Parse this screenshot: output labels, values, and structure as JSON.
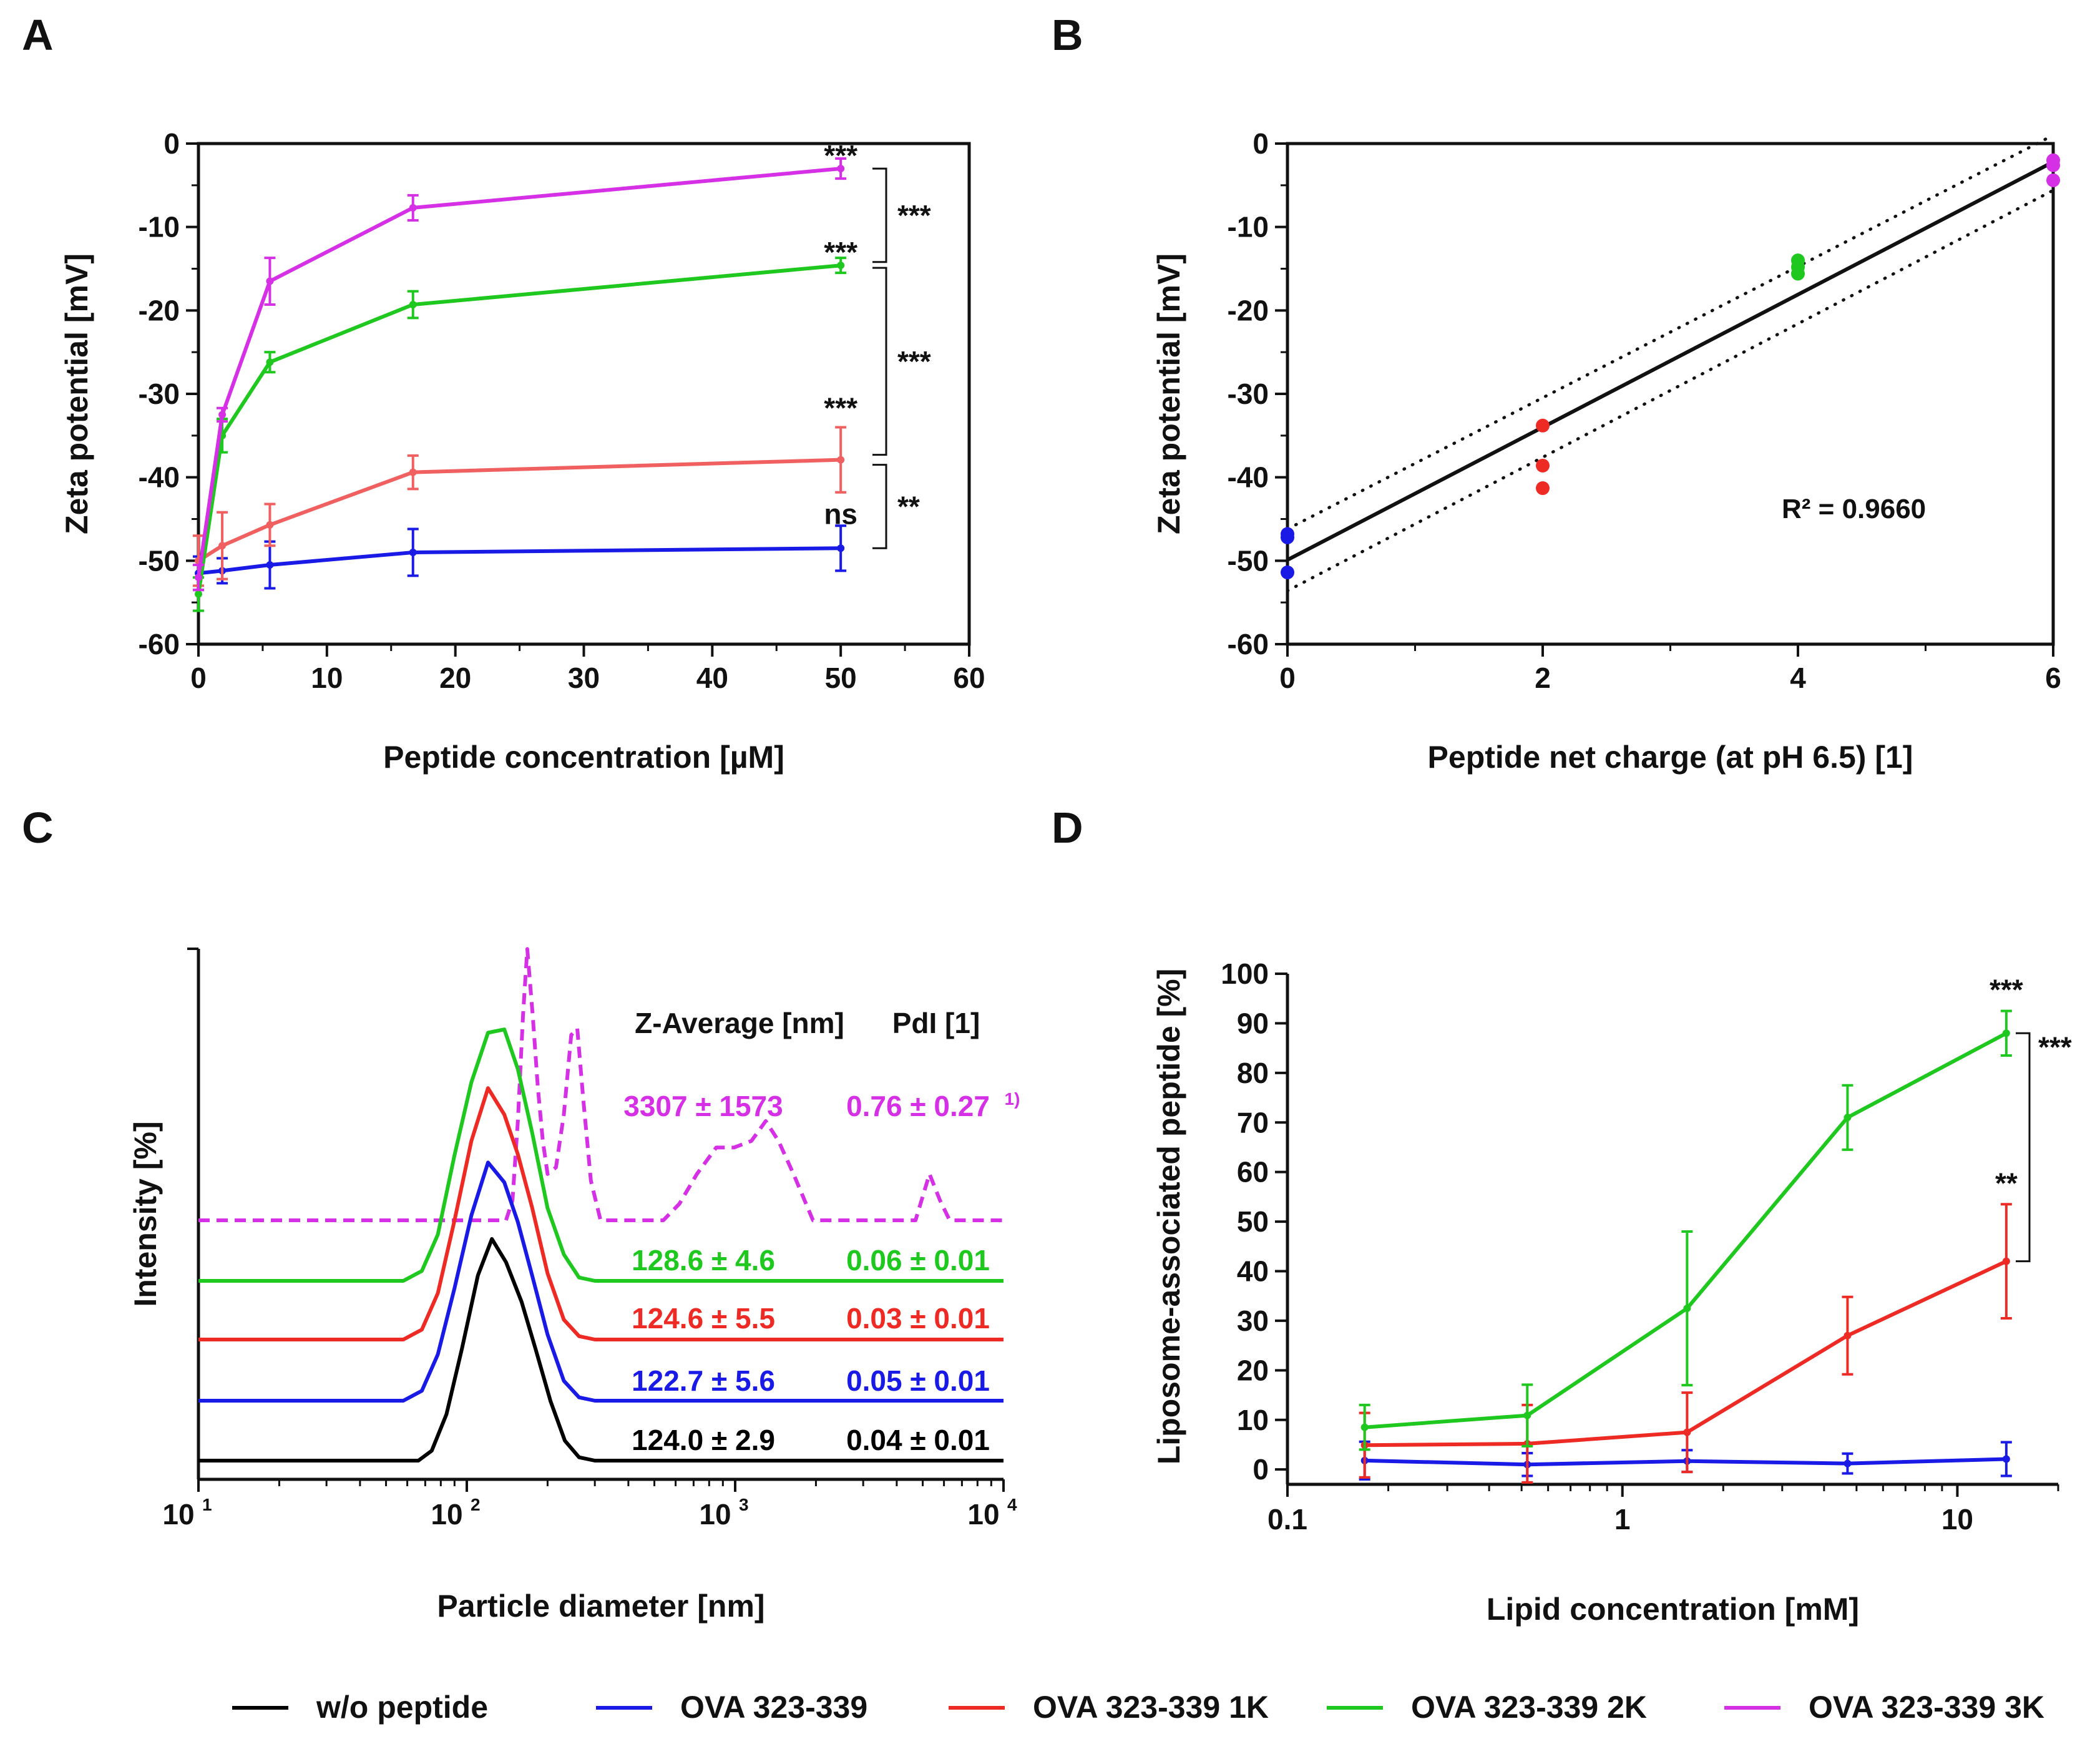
{
  "colors": {
    "wo_peptide": "#000000",
    "ova": "#1a1ae6",
    "ova_1k": "#ee2a24",
    "ova_1k_a": "#f06060",
    "ova_2k": "#1ec81e",
    "ova_3k": "#d630e6"
  },
  "panels": {
    "A": {
      "label": "A"
    },
    "B": {
      "label": "B"
    },
    "C": {
      "label": "C"
    },
    "D": {
      "label": "D"
    }
  },
  "legend": {
    "items": [
      {
        "label": "w/o peptide",
        "color": "#000000"
      },
      {
        "label": "OVA 323-339",
        "color": "#1a1ae6"
      },
      {
        "label": "OVA 323-339 1K",
        "color": "#ee2a24"
      },
      {
        "label": "OVA 323-339 2K",
        "color": "#1ec81e"
      },
      {
        "label": "OVA 323-339 3K",
        "color": "#d630e6"
      }
    ]
  },
  "chart_data": [
    {
      "panel": "A",
      "type": "line",
      "title": "",
      "xlabel": "Peptide concentration [µM]",
      "ylabel": "Zeta potential [mV]",
      "xlim": [
        0,
        60
      ],
      "ylim": [
        -60,
        0
      ],
      "xticks": [
        "0",
        "10",
        "20",
        "30",
        "40",
        "50",
        "60"
      ],
      "yticks": [
        "0",
        "-10",
        "-20",
        "-30",
        "-40",
        "-50",
        "-60"
      ],
      "x": [
        0,
        1.85,
        5.56,
        16.7,
        50
      ],
      "series": [
        {
          "name": "OVA 323-339",
          "color": "#1a1ae6",
          "values": [
            -51.5,
            -51.2,
            -50.5,
            -49.0,
            -48.5
          ],
          "errors": [
            2.0,
            1.5,
            2.8,
            2.8,
            2.7
          ]
        },
        {
          "name": "OVA 323-339 1K",
          "color": "#f06060",
          "values": [
            -50.0,
            -48.2,
            -45.7,
            -39.4,
            -37.9
          ],
          "errors": [
            3.0,
            4.0,
            2.5,
            2.0,
            3.9
          ]
        },
        {
          "name": "OVA 323-339 2K",
          "color": "#1ec81e",
          "values": [
            -54.0,
            -35.0,
            -26.2,
            -19.3,
            -14.6
          ],
          "errors": [
            2.0,
            2.0,
            1.2,
            1.6,
            0.9
          ]
        },
        {
          "name": "OVA 323-339 3K",
          "color": "#d630e6",
          "values": [
            -52.0,
            -32.5,
            -16.5,
            -7.7,
            -3.0
          ],
          "errors": [
            1.5,
            0.8,
            2.8,
            1.5,
            1.2
          ]
        }
      ],
      "annotations": [
        {
          "text": "***",
          "series": "OVA 323-339 3K"
        },
        {
          "text": "***",
          "series": "OVA 323-339 2K"
        },
        {
          "text": "***",
          "series": "OVA 323-339 1K"
        },
        {
          "text": "ns",
          "series": "OVA 323-339"
        }
      ],
      "brackets": [
        {
          "text": "***",
          "from": "OVA 323-339 3K",
          "to": "OVA 323-339 2K"
        },
        {
          "text": "***",
          "from": "OVA 323-339 2K",
          "to": "OVA 323-339 1K"
        },
        {
          "text": "**",
          "from": "OVA 323-339 1K",
          "to": "OVA 323-339"
        }
      ]
    },
    {
      "panel": "B",
      "type": "scatter",
      "title": "",
      "xlabel": "Peptide net charge (at pH 6.5) [1]",
      "ylabel": "Zeta potential [mV]",
      "xlim": [
        0,
        6
      ],
      "ylim": [
        -60,
        0
      ],
      "xticks": [
        "0",
        "2",
        "4",
        "6"
      ],
      "yticks": [
        "0",
        "-10",
        "-20",
        "-30",
        "-40",
        "-50",
        "-60"
      ],
      "points": [
        {
          "x": 0,
          "y": -47.2,
          "color": "#1a1ae6"
        },
        {
          "x": 0,
          "y": -46.8,
          "color": "#1a1ae6"
        },
        {
          "x": 0,
          "y": -51.4,
          "color": "#1a1ae6"
        },
        {
          "x": 2,
          "y": -33.8,
          "color": "#ee2a24"
        },
        {
          "x": 2,
          "y": -38.6,
          "color": "#ee2a24"
        },
        {
          "x": 2,
          "y": -41.3,
          "color": "#ee2a24"
        },
        {
          "x": 4,
          "y": -14.0,
          "color": "#1ec81e"
        },
        {
          "x": 4,
          "y": -14.8,
          "color": "#1ec81e"
        },
        {
          "x": 4,
          "y": -15.6,
          "color": "#1ec81e"
        },
        {
          "x": 6,
          "y": -2.0,
          "color": "#d630e6"
        },
        {
          "x": 6,
          "y": -2.6,
          "color": "#d630e6"
        },
        {
          "x": 6,
          "y": -4.4,
          "color": "#d630e6"
        }
      ],
      "fit": {
        "x": [
          0,
          6
        ],
        "y": [
          -49.9,
          -2.2
        ]
      },
      "ci_upper": {
        "x": [
          0,
          6
        ],
        "y": [
          -46.2,
          1.0
        ]
      },
      "ci_lower": {
        "x": [
          0,
          6
        ],
        "y": [
          -53.6,
          -5.6
        ]
      },
      "r2_label": "R² = 0.9660"
    },
    {
      "panel": "C",
      "type": "line",
      "title": "",
      "xlabel": "Particle diameter [nm]",
      "ylabel": "Intensity [%]",
      "xscale": "log",
      "xlim": [
        10,
        10000
      ],
      "xticks": [
        {
          "base": "10",
          "exp": "1"
        },
        {
          "base": "10",
          "exp": "2"
        },
        {
          "base": "10",
          "exp": "3"
        },
        {
          "base": "10",
          "exp": "4"
        }
      ],
      "header": {
        "z_average": "Z-Average [nm]",
        "pdi": "PdI [1]"
      },
      "series": [
        {
          "name": "OVA 323-339 3K",
          "color": "#d630e6",
          "dashed": true,
          "x": [
            10,
            140,
            148,
            155,
            162,
            168,
            176,
            184,
            192,
            200,
            215,
            230,
            245,
            258,
            272,
            290,
            315,
            355,
            540,
            620,
            720,
            850,
            990,
            1150,
            1300,
            1450,
            1650,
            1950,
            2400,
            4700,
            5300,
            5800,
            6300,
            10000
          ],
          "y": [
            0,
            0,
            6,
            30,
            62,
            82,
            62,
            40,
            24,
            14,
            16,
            32,
            56,
            58,
            36,
            12,
            0,
            0,
            0,
            5,
            14,
            22,
            22,
            24,
            30,
            24,
            14,
            0,
            0,
            0,
            14,
            6,
            0,
            0
          ]
        },
        {
          "name": "OVA 323-339 2K",
          "color": "#1ec81e",
          "x": [
            10,
            58,
            68,
            78,
            90,
            104,
            120,
            138,
            155,
            175,
            200,
            230,
            262,
            300,
            10000
          ],
          "y": [
            0,
            0,
            3,
            14,
            38,
            60,
            75,
            76,
            64,
            45,
            22,
            8,
            1,
            0,
            0
          ]
        },
        {
          "name": "OVA 323-339 1K",
          "color": "#ee2a24",
          "x": [
            10,
            58,
            68,
            78,
            90,
            104,
            120,
            138,
            155,
            175,
            200,
            230,
            262,
            300,
            10000
          ],
          "y": [
            0,
            0,
            3,
            14,
            36,
            60,
            76,
            68,
            56,
            40,
            20,
            6,
            1,
            0,
            0
          ]
        },
        {
          "name": "OVA 323-339",
          "color": "#1a1ae6",
          "x": [
            10,
            58,
            68,
            78,
            90,
            104,
            120,
            138,
            155,
            175,
            200,
            230,
            262,
            300,
            10000
          ],
          "y": [
            0,
            0,
            3,
            14,
            34,
            56,
            72,
            66,
            54,
            38,
            20,
            6,
            1,
            0,
            0
          ]
        },
        {
          "name": "w/o peptide",
          "color": "#000000",
          "x": [
            10,
            66,
            74,
            84,
            96,
            110,
            124,
            140,
            160,
            180,
            205,
            232,
            262,
            300,
            10000
          ],
          "y": [
            0,
            0,
            3,
            14,
            34,
            56,
            67,
            60,
            48,
            34,
            18,
            6,
            1,
            0,
            0
          ]
        }
      ],
      "values": [
        {
          "name": "OVA 323-339 3K",
          "color": "#d630e6",
          "z_average": "3307 ± 1573",
          "pdi": "0.76 ± 0.27",
          "note": "1)"
        },
        {
          "name": "OVA 323-339 2K",
          "color": "#1ec81e",
          "z_average": "128.6 ± 4.6",
          "pdi": "0.06 ± 0.01",
          "note": ""
        },
        {
          "name": "OVA 323-339 1K",
          "color": "#ee2a24",
          "z_average": "124.6 ± 5.5",
          "pdi": "0.03 ± 0.01",
          "note": ""
        },
        {
          "name": "OVA 323-339",
          "color": "#1a1ae6",
          "z_average": "122.7 ± 5.6",
          "pdi": "0.05 ± 0.01",
          "note": ""
        },
        {
          "name": "w/o peptide",
          "color": "#000000",
          "z_average": "124.0 ± 2.9",
          "pdi": "0.04 ± 0.01",
          "note": ""
        }
      ]
    },
    {
      "panel": "D",
      "type": "line",
      "title": "",
      "xlabel": "Lipid concentration [mM]",
      "ylabel": "Liposome-associated peptide [%]",
      "xscale": "log",
      "xlim": [
        0.1,
        20
      ],
      "ylim": [
        -3,
        100
      ],
      "xticks": [
        "0.1",
        "1",
        "10"
      ],
      "yticks": [
        "0",
        "10",
        "20",
        "30",
        "40",
        "50",
        "60",
        "70",
        "80",
        "90",
        "100"
      ],
      "x": [
        0.17,
        0.52,
        1.56,
        4.7,
        14
      ],
      "series": [
        {
          "name": "OVA 323-339",
          "color": "#1a1ae6",
          "values": [
            1.8,
            1.0,
            1.7,
            1.2,
            2.1
          ],
          "errors": [
            3.8,
            2.3,
            2.2,
            2.0,
            3.4
          ]
        },
        {
          "name": "OVA 323-339 1K",
          "color": "#ee2a24",
          "values": [
            4.9,
            5.2,
            7.5,
            27.0,
            42.0
          ],
          "errors": [
            6.5,
            7.8,
            8.0,
            7.8,
            11.5
          ]
        },
        {
          "name": "OVA 323-339 2K",
          "color": "#1ec81e",
          "values": [
            8.5,
            10.9,
            32.5,
            71.0,
            88.0
          ],
          "errors": [
            4.5,
            6.2,
            15.5,
            6.5,
            4.5
          ]
        }
      ],
      "annotations": [
        {
          "text": "***",
          "series": "OVA 323-339 2K"
        },
        {
          "text": "**",
          "series": "OVA 323-339 1K"
        }
      ],
      "brackets": [
        {
          "text": "***",
          "from": "OVA 323-339 2K",
          "to": "OVA 323-339 1K"
        }
      ]
    }
  ]
}
